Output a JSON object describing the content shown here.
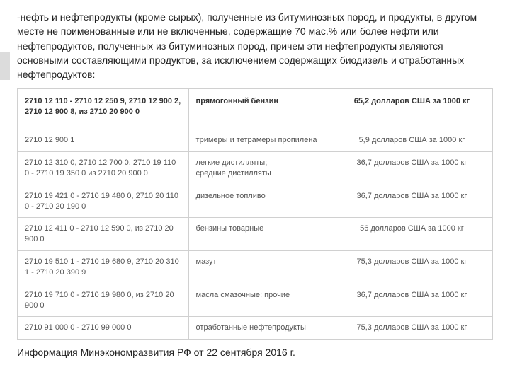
{
  "intro_text": "-нефть и нефтепродукты (кроме сырых), полученные из битуминозных пород, и продукты, в другом месте не поименованные или не включенные, содержащие 70 мас.% или более нефти или нефтепродуктов, полученных из битуминозных пород, причем эти нефтепродукты являются основными составляющими продуктов, за исключением содержащих биодизель и отработанных нефтепродуктов:",
  "source": "Информация Минэкономразвития РФ от 22 сентября 2016 г.",
  "table": {
    "border_color": "#d0d0d0",
    "header_text_color": "#333333",
    "body_text_color": "#555555",
    "header": {
      "c1": "2710 12 110 - 2710 12 250 9, 2710 12 900 2, 2710 12 900 8, из 2710 20 900 0",
      "c2": "прямогонный бензин",
      "c3": "65,2 долларов США за 1000 кг"
    },
    "rows": [
      {
        "c1": "2710 12 900 1",
        "c2": "тримеры и тетрамеры пропилена",
        "c3": "5,9 долларов США за 1000 кг"
      },
      {
        "c1": "2710 12 310 0, 2710 12 700 0, 2710 19 110 0 - 2710 19 350 0 из 2710 20 900 0",
        "c2": "легкие дистилляты;\nсредние дистилляты",
        "c3": "36,7 долларов США за 1000 кг"
      },
      {
        "c1": "2710 19 421 0 - 2710 19 480 0, 2710 20 110 0 - 2710 20 190 0",
        "c2": "дизельное топливо",
        "c3": "36,7 долларов США за 1000 кг"
      },
      {
        "c1": "2710 12 411 0 - 2710 12 590 0, из 2710 20 900 0",
        "c2": "бензины товарные",
        "c3": "56 долларов США за 1000 кг"
      },
      {
        "c1": "2710 19 510 1 - 2710 19 680 9, 2710 20 310 1 - 2710 20 390 9",
        "c2": "мазут",
        "c3": "75,3 долларов США за 1000 кг"
      },
      {
        "c1": "2710 19 710 0 - 2710 19 980 0, из 2710 20 900 0",
        "c2": "масла смазочные; прочие",
        "c3": "36,7 долларов США за 1000 кг"
      },
      {
        "c1": "2710 91 000 0 - 2710 99 000 0",
        "c2": "отработанные нефтепродукты",
        "c3": "75,3 долларов США за 1000 кг"
      }
    ]
  }
}
